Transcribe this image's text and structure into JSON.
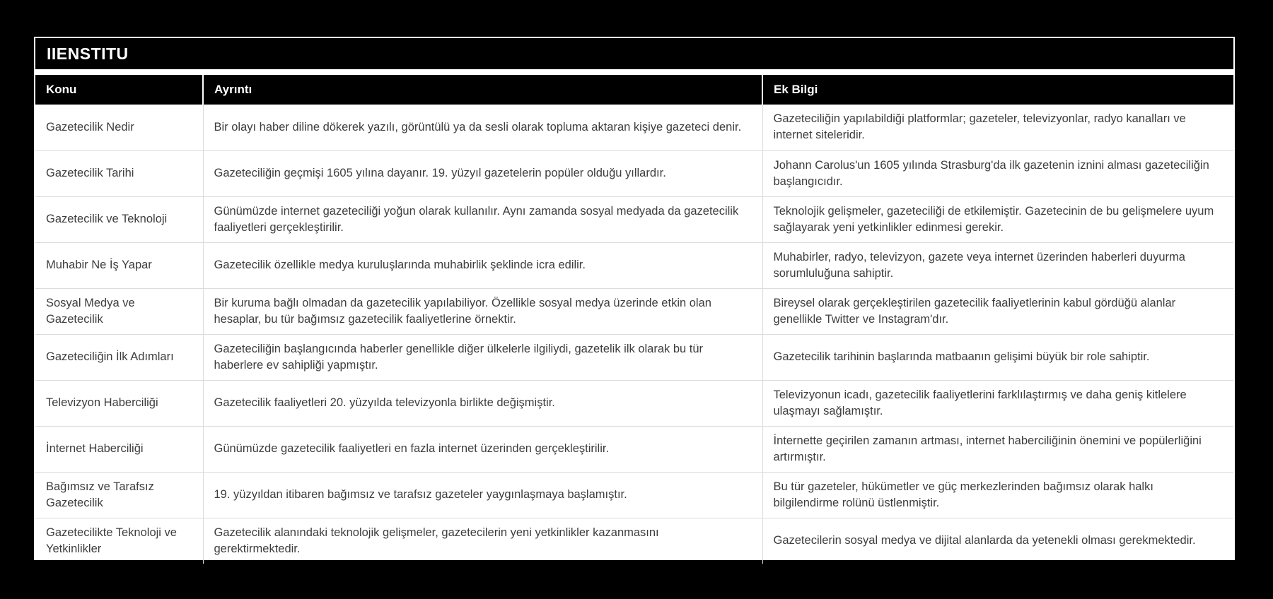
{
  "title": "IIENSTITU",
  "colors": {
    "page_background": "#000000",
    "panel_background": "#ffffff",
    "title_bar_background": "#000000",
    "header_background": "#000000",
    "header_text": "#ffffff",
    "body_text": "#3d3d3d",
    "separator": "#dcdcdc"
  },
  "table": {
    "columns": [
      {
        "key": "konu",
        "label": "Konu"
      },
      {
        "key": "ayrinti",
        "label": "Ayrıntı"
      },
      {
        "key": "ek_bilgi",
        "label": "Ek Bilgi"
      }
    ],
    "rows": [
      {
        "konu": "Gazetecilik Nedir",
        "ayrinti": "Bir olayı haber diline dökerek yazılı, görüntülü ya da sesli olarak topluma aktaran kişiye gazeteci denir.",
        "ek_bilgi": "Gazeteciliğin yapılabildiği platformlar; gazeteler, televizyonlar, radyo kanalları ve internet siteleridir."
      },
      {
        "konu": "Gazetecilik Tarihi",
        "ayrinti": "Gazeteciliğin geçmişi 1605 yılına dayanır. 19. yüzyıl gazetelerin popüler olduğu yıllardır.",
        "ek_bilgi": "Johann Carolus'un 1605 yılında Strasburg'da ilk gazetenin iznini alması gazeteciliğin başlangıcıdır."
      },
      {
        "konu": "Gazetecilik ve Teknoloji",
        "ayrinti": "Günümüzde internet gazeteciliği yoğun olarak kullanılır. Aynı zamanda sosyal medyada da gazetecilik faaliyetleri gerçekleştirilir.",
        "ek_bilgi": "Teknolojik gelişmeler, gazeteciliği de etkilemiştir. Gazetecinin de bu gelişmelere uyum sağlayarak yeni yetkinlikler edinmesi gerekir."
      },
      {
        "konu": "Muhabir Ne İş Yapar",
        "ayrinti": "Gazetecilik özellikle medya kuruluşlarında muhabirlik şeklinde icra edilir.",
        "ek_bilgi": "Muhabirler, radyo, televizyon, gazete veya internet üzerinden haberleri duyurma sorumluluğuna sahiptir."
      },
      {
        "konu": "Sosyal Medya ve Gazetecilik",
        "ayrinti": "Bir kuruma bağlı olmadan da gazetecilik yapılabiliyor. Özellikle sosyal medya üzerinde etkin olan hesaplar, bu tür bağımsız gazetecilik faaliyetlerine örnektir.",
        "ek_bilgi": "Bireysel olarak gerçekleştirilen gazetecilik faaliyetlerinin kabul gördüğü alanlar genellikle Twitter ve Instagram'dır."
      },
      {
        "konu": "Gazeteciliğin İlk Adımları",
        "ayrinti": "Gazeteciliğin başlangıcında haberler genellikle diğer ülkelerle ilgiliydi, gazetelik ilk olarak bu tür haberlere ev sahipliği yapmıştır.",
        "ek_bilgi": "Gazetecilik tarihinin başlarında matbaanın gelişimi büyük bir role sahiptir."
      },
      {
        "konu": "Televizyon Haberciliği",
        "ayrinti": "Gazetecilik faaliyetleri 20. yüzyılda televizyonla birlikte değişmiştir.",
        "ek_bilgi": "Televizyonun icadı, gazetecilik faaliyetlerini farklılaştırmış ve daha geniş kitlelere ulaşmayı sağlamıştır."
      },
      {
        "konu": "İnternet Haberciliği",
        "ayrinti": "Günümüzde gazetecilik faaliyetleri en fazla internet üzerinden gerçekleştirilir.",
        "ek_bilgi": "İnternette geçirilen zamanın artması, internet haberciliğinin önemini ve popülerliğini artırmıştır."
      },
      {
        "konu": "Bağımsız ve Tarafsız Gazetecilik",
        "ayrinti": "19. yüzyıldan itibaren bağımsız ve tarafsız gazeteler yaygınlaşmaya başlamıştır.",
        "ek_bilgi": "Bu tür gazeteler, hükümetler ve güç merkezlerinden bağımsız olarak halkı bilgilendirme rolünü üstlenmiştir."
      },
      {
        "konu": "Gazetecilikte Teknoloji ve Yetkinlikler",
        "ayrinti": "Gazetecilik alanındaki teknolojik gelişmeler, gazetecilerin yeni yetkinlikler kazanmasını gerektirmektedir.",
        "ek_bilgi": "Gazetecilerin sosyal medya ve dijital alanlarda da yetenekli olması gerekmektedir."
      }
    ]
  }
}
